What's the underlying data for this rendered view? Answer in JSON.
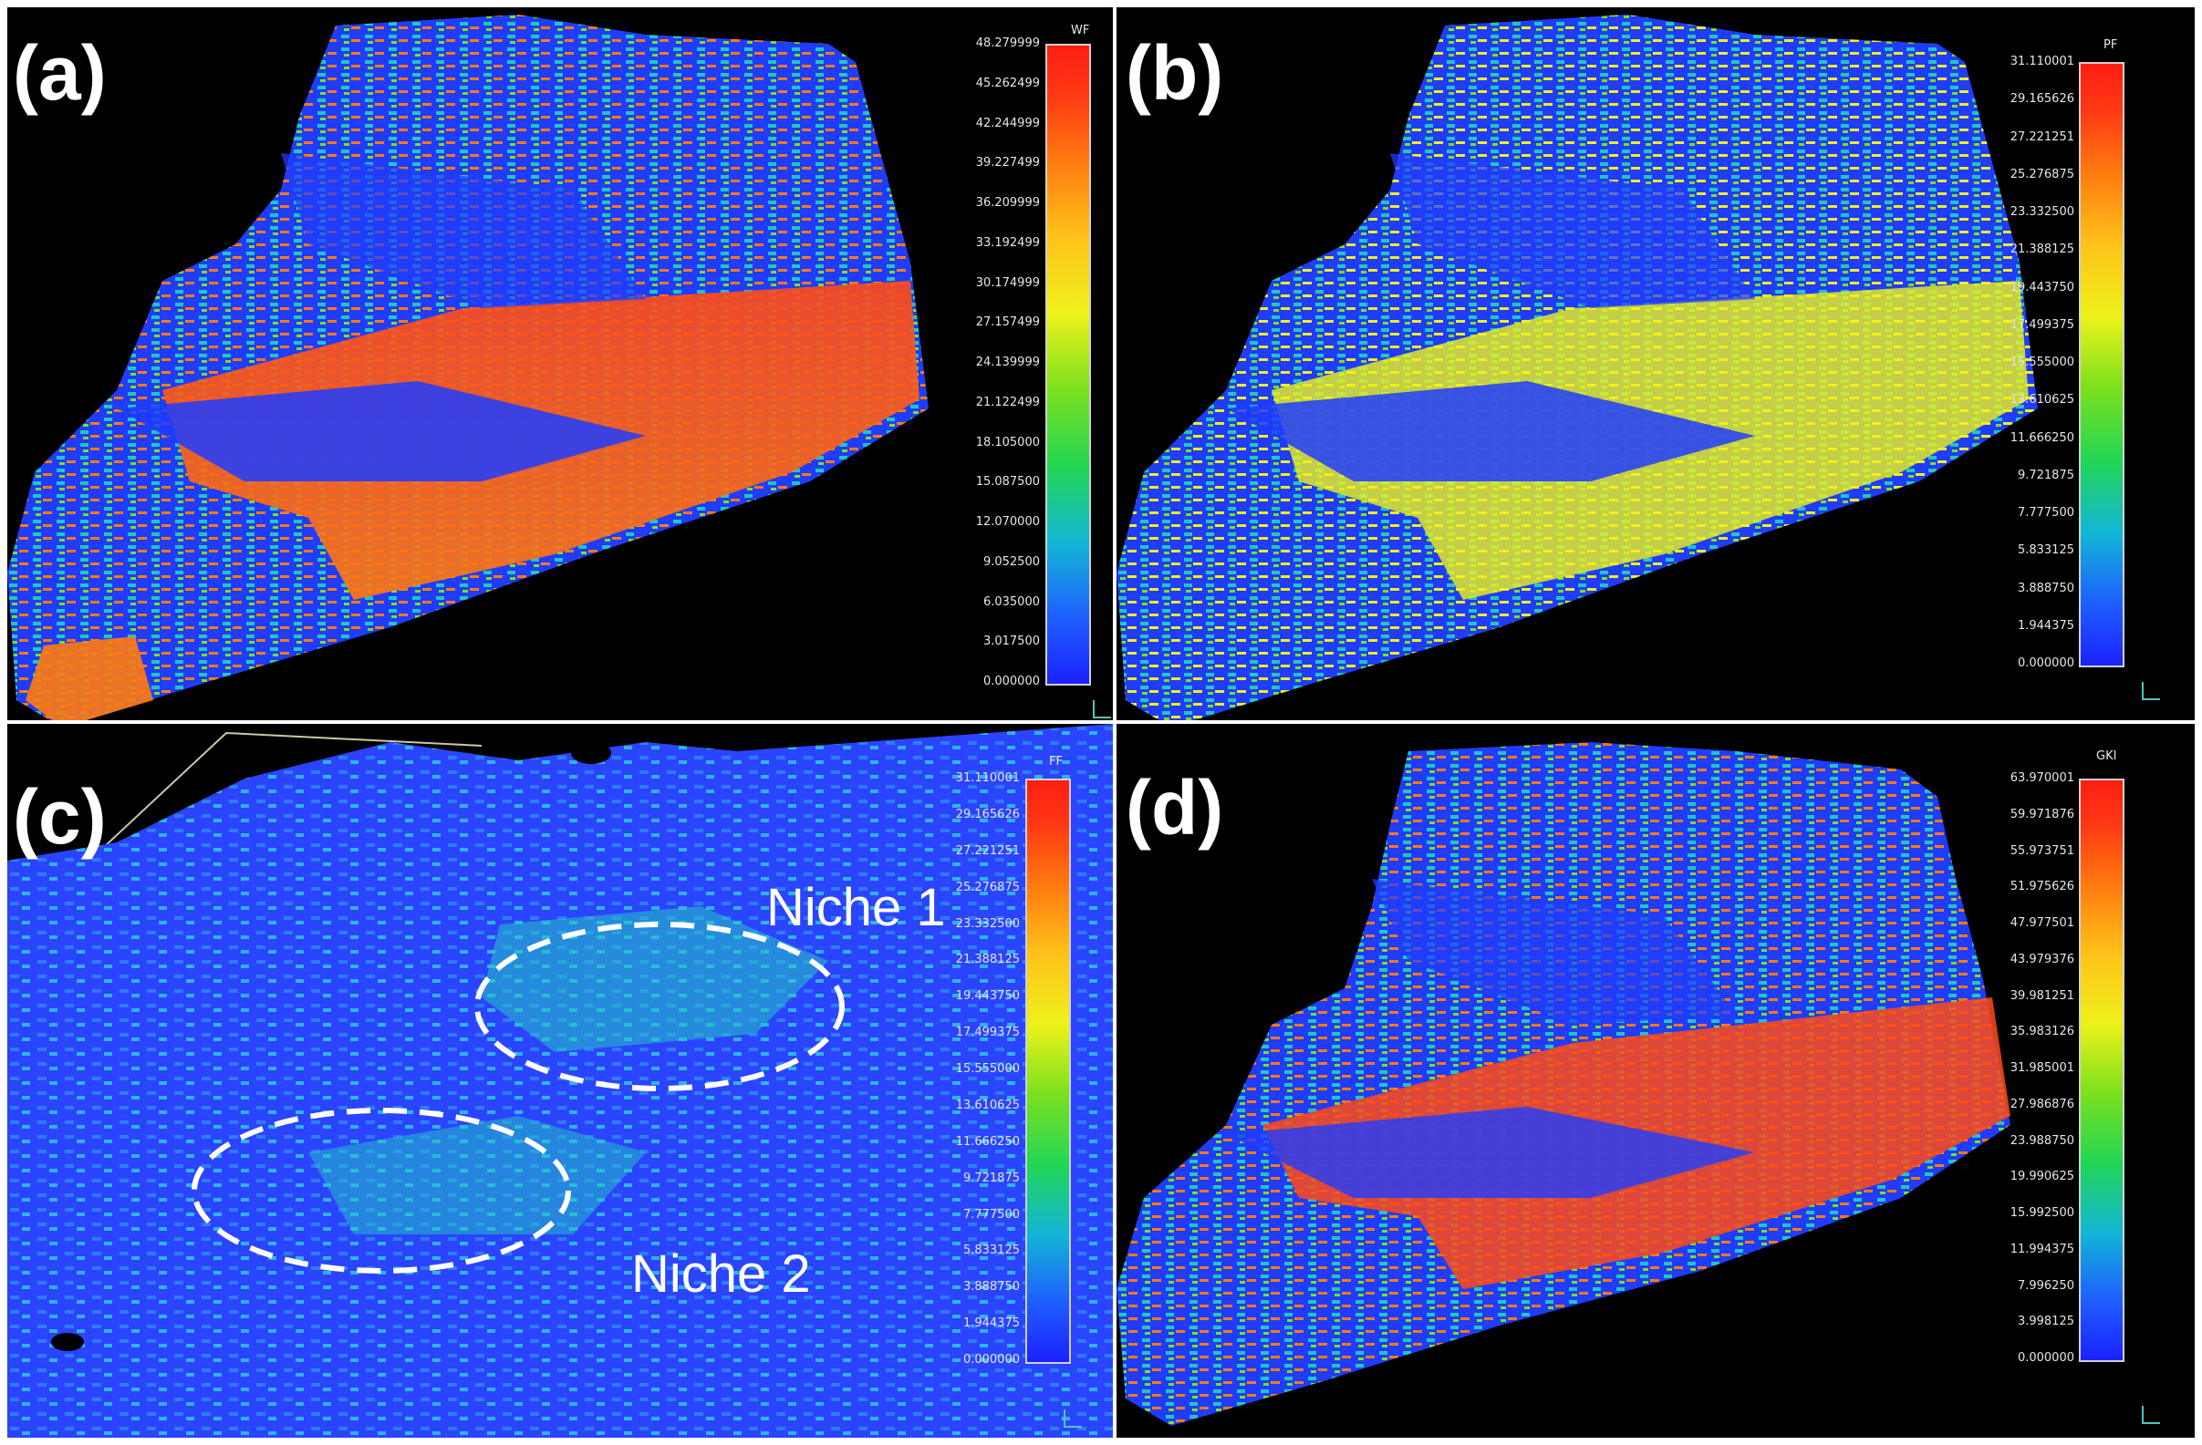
{
  "panels": [
    {
      "letter": "(a)",
      "colorbar": {
        "title": "WF",
        "ticks": [
          "48.279999",
          "45.262499",
          "42.244999",
          "39.227499",
          "36.209999",
          "33.192499",
          "30.174999",
          "27.157499",
          "24.139999",
          "21.122499",
          "18.105000",
          "15.087500",
          "12.070000",
          "9.052500",
          "6.035000",
          "3.017500",
          "0.000000"
        ]
      }
    },
    {
      "letter": "(b)",
      "colorbar": {
        "title": "PF",
        "ticks": [
          "31.110001",
          "29.165626",
          "27.221251",
          "25.276875",
          "23.332500",
          "21.388125",
          "19.443750",
          "17.499375",
          "15.555000",
          "13.610625",
          "11.666250",
          "9.721875",
          "7.777500",
          "5.833125",
          "3.888750",
          "1.944375",
          "0.000000"
        ]
      }
    },
    {
      "letter": "(c)",
      "colorbar": {
        "title": "FF",
        "ticks": [
          "31.110001",
          "29.165626",
          "27.221251",
          "25.276875",
          "23.332500",
          "21.388125",
          "19.443750",
          "17.499375",
          "15.555000",
          "13.610625",
          "11.666250",
          "9.721875",
          "7.777500",
          "5.833125",
          "3.888750",
          "1.944375",
          "0.000000"
        ]
      },
      "annotations": [
        "Niche 1",
        "Niche 2"
      ]
    },
    {
      "letter": "(d)",
      "colorbar": {
        "title": "GKI",
        "ticks": [
          "63.970001",
          "59.971876",
          "55.973751",
          "51.975626",
          "47.977501",
          "43.979376",
          "39.981251",
          "35.983126",
          "31.985001",
          "27.986876",
          "23.988750",
          "19.990625",
          "15.992500",
          "11.994375",
          "7.996250",
          "3.998125",
          "0.000000"
        ]
      }
    }
  ],
  "colors": {
    "background": "#000000",
    "low": "#1f3cff",
    "mid": "#22d655",
    "high": "#ff3a14",
    "annotation_ellipse": "#ffffff"
  }
}
